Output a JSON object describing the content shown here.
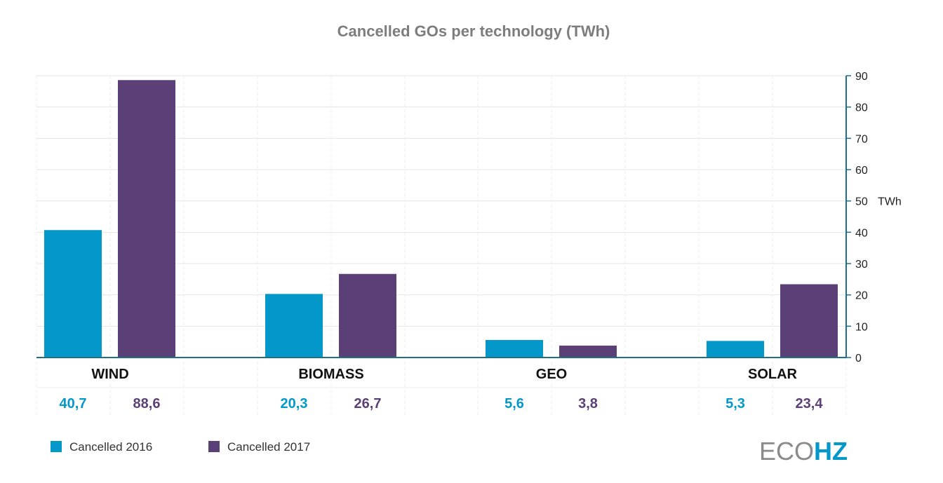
{
  "chart_data": {
    "type": "bar",
    "title": "Cancelled GOs per technology (TWh)",
    "categories": [
      "WIND",
      "BIOMASS",
      "GEO",
      "SOLAR"
    ],
    "series": [
      {
        "name": "Cancelled 2016",
        "values": [
          40.7,
          20.3,
          5.6,
          5.3
        ],
        "color": "#0497c9"
      },
      {
        "name": "Cancelled 2017",
        "values": [
          88.6,
          26.7,
          3.8,
          23.4
        ],
        "color": "#5b4077"
      }
    ],
    "value_labels": [
      [
        "40,7",
        "20,3",
        "5,6",
        "5,3"
      ],
      [
        "88,6",
        "26,7",
        "3,8",
        "23,4"
      ]
    ],
    "y_ticks": [
      0,
      10,
      20,
      30,
      40,
      50,
      60,
      70,
      80,
      90
    ],
    "y_unit_label": "TWh",
    "y_unit_at_tick": 50,
    "ylim": [
      0,
      90
    ],
    "grid": true,
    "y_axis_side": "right",
    "legend_position": "bottom-left",
    "axis_color": "#1f6f8b"
  },
  "brand": {
    "logo_left": "ECO",
    "logo_right": "HZ",
    "logo_left_color": "#8a8a8a",
    "logo_right_color": "#0497c9"
  }
}
